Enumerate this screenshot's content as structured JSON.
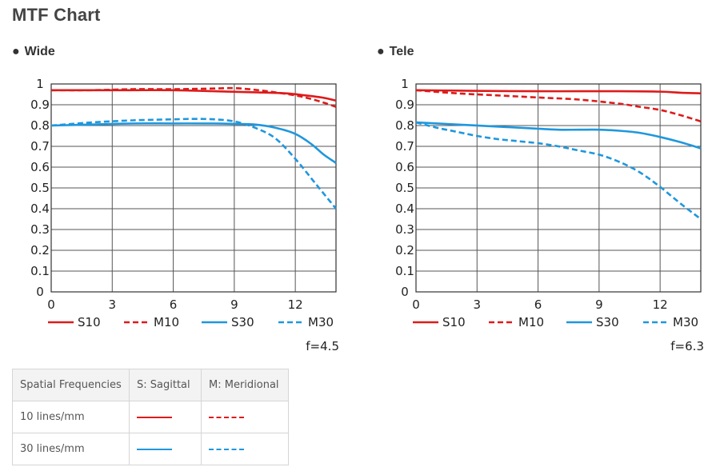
{
  "page": {
    "title": "MTF Chart"
  },
  "colors": {
    "red": "#dd1b1b",
    "blue": "#1f97dd"
  },
  "chart_data": [
    {
      "type": "line",
      "title": "Wide",
      "aperture": "f=4.5",
      "xlim": [
        0,
        14
      ],
      "ylim": [
        0,
        1
      ],
      "xticks": [
        0,
        3,
        6,
        9,
        12
      ],
      "yticks": [
        0,
        0.1,
        0.2,
        0.3,
        0.4,
        0.5,
        0.6,
        0.7,
        0.8,
        0.9,
        1
      ],
      "ytick_labels": [
        "0",
        "0.1",
        "0.2",
        "0.3",
        "0.4",
        "0.5",
        "0.6",
        "0.7",
        "0.8",
        "0.9",
        "1"
      ],
      "grid": true,
      "legend_position": "bottom",
      "series": [
        {
          "name": "S10",
          "color": "red",
          "dash": false,
          "x": [
            0,
            2,
            4,
            6,
            8,
            10,
            11.5,
            12.5,
            13.3,
            14
          ],
          "y": [
            0.97,
            0.97,
            0.97,
            0.97,
            0.965,
            0.96,
            0.955,
            0.945,
            0.935,
            0.92
          ]
        },
        {
          "name": "M10",
          "color": "red",
          "dash": true,
          "x": [
            0,
            2,
            4,
            6,
            8,
            9,
            10,
            11,
            12,
            12.7,
            13.4,
            14
          ],
          "y": [
            0.97,
            0.97,
            0.975,
            0.975,
            0.978,
            0.98,
            0.972,
            0.96,
            0.945,
            0.93,
            0.91,
            0.89
          ]
        },
        {
          "name": "S30",
          "color": "blue",
          "dash": false,
          "x": [
            0,
            2,
            4,
            6,
            8,
            9,
            10,
            11,
            12,
            12.8,
            13.4,
            14
          ],
          "y": [
            0.8,
            0.805,
            0.81,
            0.81,
            0.81,
            0.808,
            0.805,
            0.79,
            0.76,
            0.71,
            0.66,
            0.62
          ]
        },
        {
          "name": "M30",
          "color": "blue",
          "dash": true,
          "x": [
            0,
            2,
            4,
            6,
            7,
            8,
            9,
            10,
            11,
            12,
            13,
            14
          ],
          "y": [
            0.8,
            0.815,
            0.825,
            0.83,
            0.832,
            0.83,
            0.82,
            0.79,
            0.74,
            0.64,
            0.52,
            0.4
          ]
        }
      ]
    },
    {
      "type": "line",
      "title": "Tele",
      "aperture": "f=6.3",
      "xlim": [
        0,
        14
      ],
      "ylim": [
        0,
        1
      ],
      "xticks": [
        0,
        3,
        6,
        9,
        12
      ],
      "yticks": [
        0,
        0.1,
        0.2,
        0.3,
        0.4,
        0.5,
        0.6,
        0.7,
        0.8,
        0.9,
        1
      ],
      "ytick_labels": [
        "0",
        "0.1",
        "0.2",
        "0.3",
        "0.4",
        "0.5",
        "0.6",
        "0.7",
        "0.8",
        "0.9",
        "1"
      ],
      "grid": true,
      "legend_position": "bottom",
      "series": [
        {
          "name": "S10",
          "color": "red",
          "dash": false,
          "x": [
            0,
            2,
            4,
            6,
            8,
            10,
            12,
            13,
            14
          ],
          "y": [
            0.97,
            0.968,
            0.966,
            0.965,
            0.965,
            0.965,
            0.963,
            0.958,
            0.955
          ]
        },
        {
          "name": "M10",
          "color": "red",
          "dash": true,
          "x": [
            0,
            2,
            4,
            6,
            8,
            10,
            11,
            12,
            13,
            14
          ],
          "y": [
            0.97,
            0.955,
            0.945,
            0.935,
            0.925,
            0.905,
            0.89,
            0.875,
            0.85,
            0.82
          ]
        },
        {
          "name": "S30",
          "color": "blue",
          "dash": false,
          "x": [
            0,
            2,
            4,
            6,
            7,
            8,
            9,
            10,
            11,
            12,
            13,
            14
          ],
          "y": [
            0.815,
            0.805,
            0.795,
            0.785,
            0.78,
            0.78,
            0.78,
            0.775,
            0.765,
            0.745,
            0.72,
            0.69
          ]
        },
        {
          "name": "M30",
          "color": "blue",
          "dash": true,
          "x": [
            0,
            1,
            2,
            3,
            4,
            5,
            6,
            7,
            8,
            9,
            10,
            11,
            12,
            13,
            14
          ],
          "y": [
            0.815,
            0.79,
            0.77,
            0.75,
            0.735,
            0.725,
            0.715,
            0.7,
            0.68,
            0.66,
            0.625,
            0.575,
            0.505,
            0.425,
            0.35
          ]
        }
      ]
    }
  ],
  "key_table": {
    "headers": [
      "Spatial Frequencies",
      "S: Sagittal",
      "M: Meridional"
    ],
    "rows": [
      {
        "label": "10 lines/mm",
        "color": "red"
      },
      {
        "label": "30 lines/mm",
        "color": "blue"
      }
    ]
  }
}
